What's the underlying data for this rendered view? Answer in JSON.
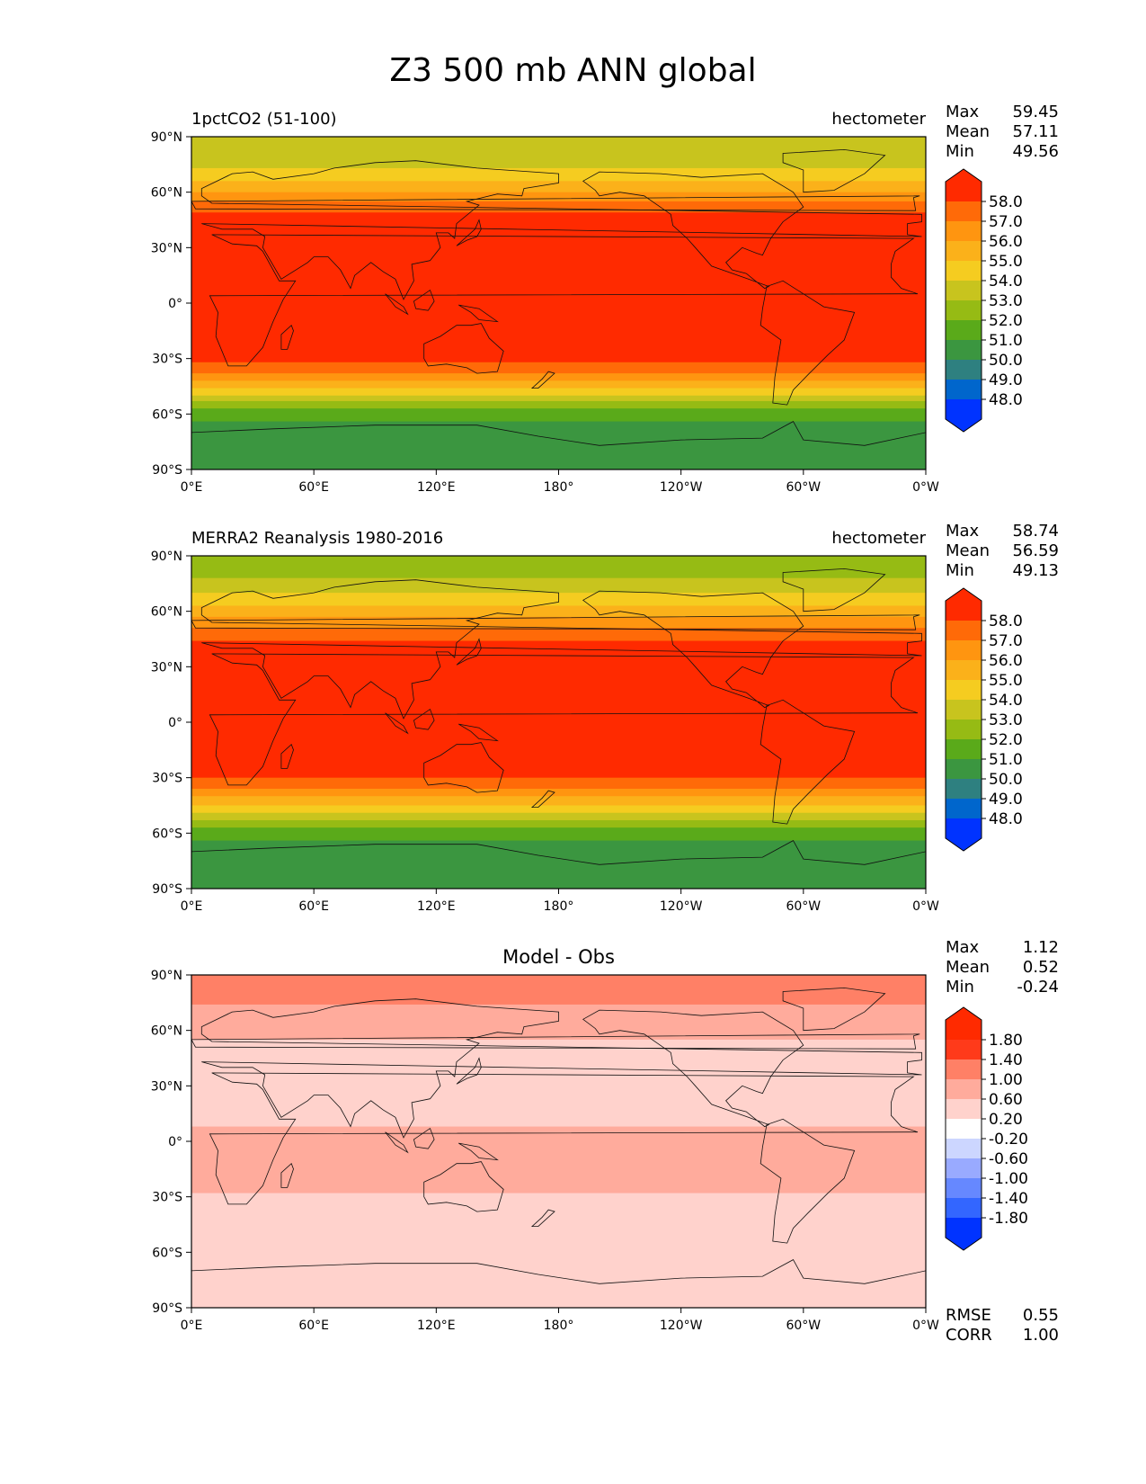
{
  "figure": {
    "title": "Z3 500 mb ANN global"
  },
  "colors": {
    "contour_levels_abs": [
      "#0033ff",
      "#0066cc",
      "#2e8080",
      "#3b9640",
      "#5aaa1a",
      "#96bb14",
      "#c8c41e",
      "#f5cc20",
      "#fbb11a",
      "#ff9510",
      "#ff6a08",
      "#ff2a00"
    ],
    "contour_levels_diff": [
      "#0033ff",
      "#3366ff",
      "#6688ff",
      "#99aaff",
      "#ccd6ff",
      "#ffffff",
      "#ffd2cc",
      "#ffab9c",
      "#ff8066",
      "#ff3a1a",
      "#ff2a00"
    ]
  },
  "chart_data": [
    {
      "type": "heatmap",
      "panel": "test",
      "title_left": "1pctCO2 (51-100)",
      "title_right": "hectometer",
      "stats": {
        "Max": "59.45",
        "Mean": "57.11",
        "Min": "49.56"
      },
      "stat_labels": [
        "Max",
        "Mean",
        "Min"
      ],
      "xticks": [
        "0°E",
        "60°E",
        "120°E",
        "180°",
        "120°W",
        "60°W",
        "0°W"
      ],
      "yticks": [
        "90°N",
        "60°N",
        "30°N",
        "0°",
        "30°S",
        "60°S",
        "90°S"
      ],
      "xlim": [
        0,
        360
      ],
      "ylim": [
        -90,
        90
      ],
      "colorbar": {
        "labels": [
          "58.0",
          "57.0",
          "56.0",
          "55.0",
          "54.0",
          "53.0",
          "52.0",
          "51.0",
          "50.0",
          "49.0",
          "48.0"
        ]
      },
      "zonal_bands": [
        [
          90,
          73,
          6
        ],
        [
          73,
          66,
          7
        ],
        [
          66,
          60,
          8
        ],
        [
          60,
          55,
          9
        ],
        [
          55,
          49,
          10
        ],
        [
          49,
          36,
          11
        ],
        [
          36,
          -32,
          11
        ],
        [
          -32,
          -38,
          10
        ],
        [
          -38,
          -42,
          9
        ],
        [
          -42,
          -46,
          8
        ],
        [
          -46,
          -50,
          7
        ],
        [
          -50,
          -53,
          6
        ],
        [
          -53,
          -57,
          5
        ],
        [
          -57,
          -64,
          4
        ],
        [
          -64,
          -90,
          3
        ]
      ]
    },
    {
      "type": "heatmap",
      "panel": "reference",
      "title_left": "MERRA2 Reanalysis 1980-2016",
      "title_right": "hectometer",
      "stats": {
        "Max": "58.74",
        "Mean": "56.59",
        "Min": "49.13"
      },
      "stat_labels": [
        "Max",
        "Mean",
        "Min"
      ],
      "xticks": [
        "0°E",
        "60°E",
        "120°E",
        "180°",
        "120°W",
        "60°W",
        "0°W"
      ],
      "yticks": [
        "90°N",
        "60°N",
        "30°N",
        "0°",
        "30°S",
        "60°S",
        "90°S"
      ],
      "xlim": [
        0,
        360
      ],
      "ylim": [
        -90,
        90
      ],
      "colorbar": {
        "labels": [
          "58.0",
          "57.0",
          "56.0",
          "55.0",
          "54.0",
          "53.0",
          "52.0",
          "51.0",
          "50.0",
          "49.0",
          "48.0"
        ]
      },
      "zonal_bands": [
        [
          90,
          78,
          5
        ],
        [
          78,
          70,
          6
        ],
        [
          70,
          63,
          7
        ],
        [
          63,
          57,
          8
        ],
        [
          57,
          51,
          9
        ],
        [
          51,
          44,
          10
        ],
        [
          44,
          34,
          11
        ],
        [
          34,
          -30,
          11
        ],
        [
          -30,
          -36,
          10
        ],
        [
          -36,
          -40,
          9
        ],
        [
          -40,
          -45,
          8
        ],
        [
          -45,
          -49,
          7
        ],
        [
          -49,
          -53,
          6
        ],
        [
          -53,
          -57,
          5
        ],
        [
          -57,
          -64,
          4
        ],
        [
          -64,
          -90,
          3
        ]
      ]
    },
    {
      "type": "heatmap",
      "panel": "difference",
      "title_center": "Model - Obs",
      "stats": {
        "Max": "1.12",
        "Mean": "0.52",
        "Min": "-0.24"
      },
      "stat_labels": [
        "Max",
        "Mean",
        "Min"
      ],
      "metrics": {
        "RMSE": "0.55",
        "CORR": "1.00"
      },
      "metric_labels": [
        "RMSE",
        "CORR"
      ],
      "xticks": [
        "0°E",
        "60°E",
        "120°E",
        "180°",
        "120°W",
        "60°W",
        "0°W"
      ],
      "yticks": [
        "90°N",
        "60°N",
        "30°N",
        "0°",
        "30°S",
        "60°S",
        "90°S"
      ],
      "xlim": [
        0,
        360
      ],
      "ylim": [
        -90,
        90
      ],
      "colorbar": {
        "labels": [
          "1.80",
          "1.40",
          "1.00",
          "0.60",
          "0.20",
          "-0.20",
          "-0.60",
          "-1.00",
          "-1.40",
          "-1.80"
        ]
      },
      "zonal_bands": [
        [
          90,
          74,
          8
        ],
        [
          74,
          55,
          7
        ],
        [
          55,
          28,
          6
        ],
        [
          28,
          8,
          6
        ],
        [
          8,
          -28,
          7
        ],
        [
          -28,
          -90,
          6
        ]
      ]
    }
  ]
}
